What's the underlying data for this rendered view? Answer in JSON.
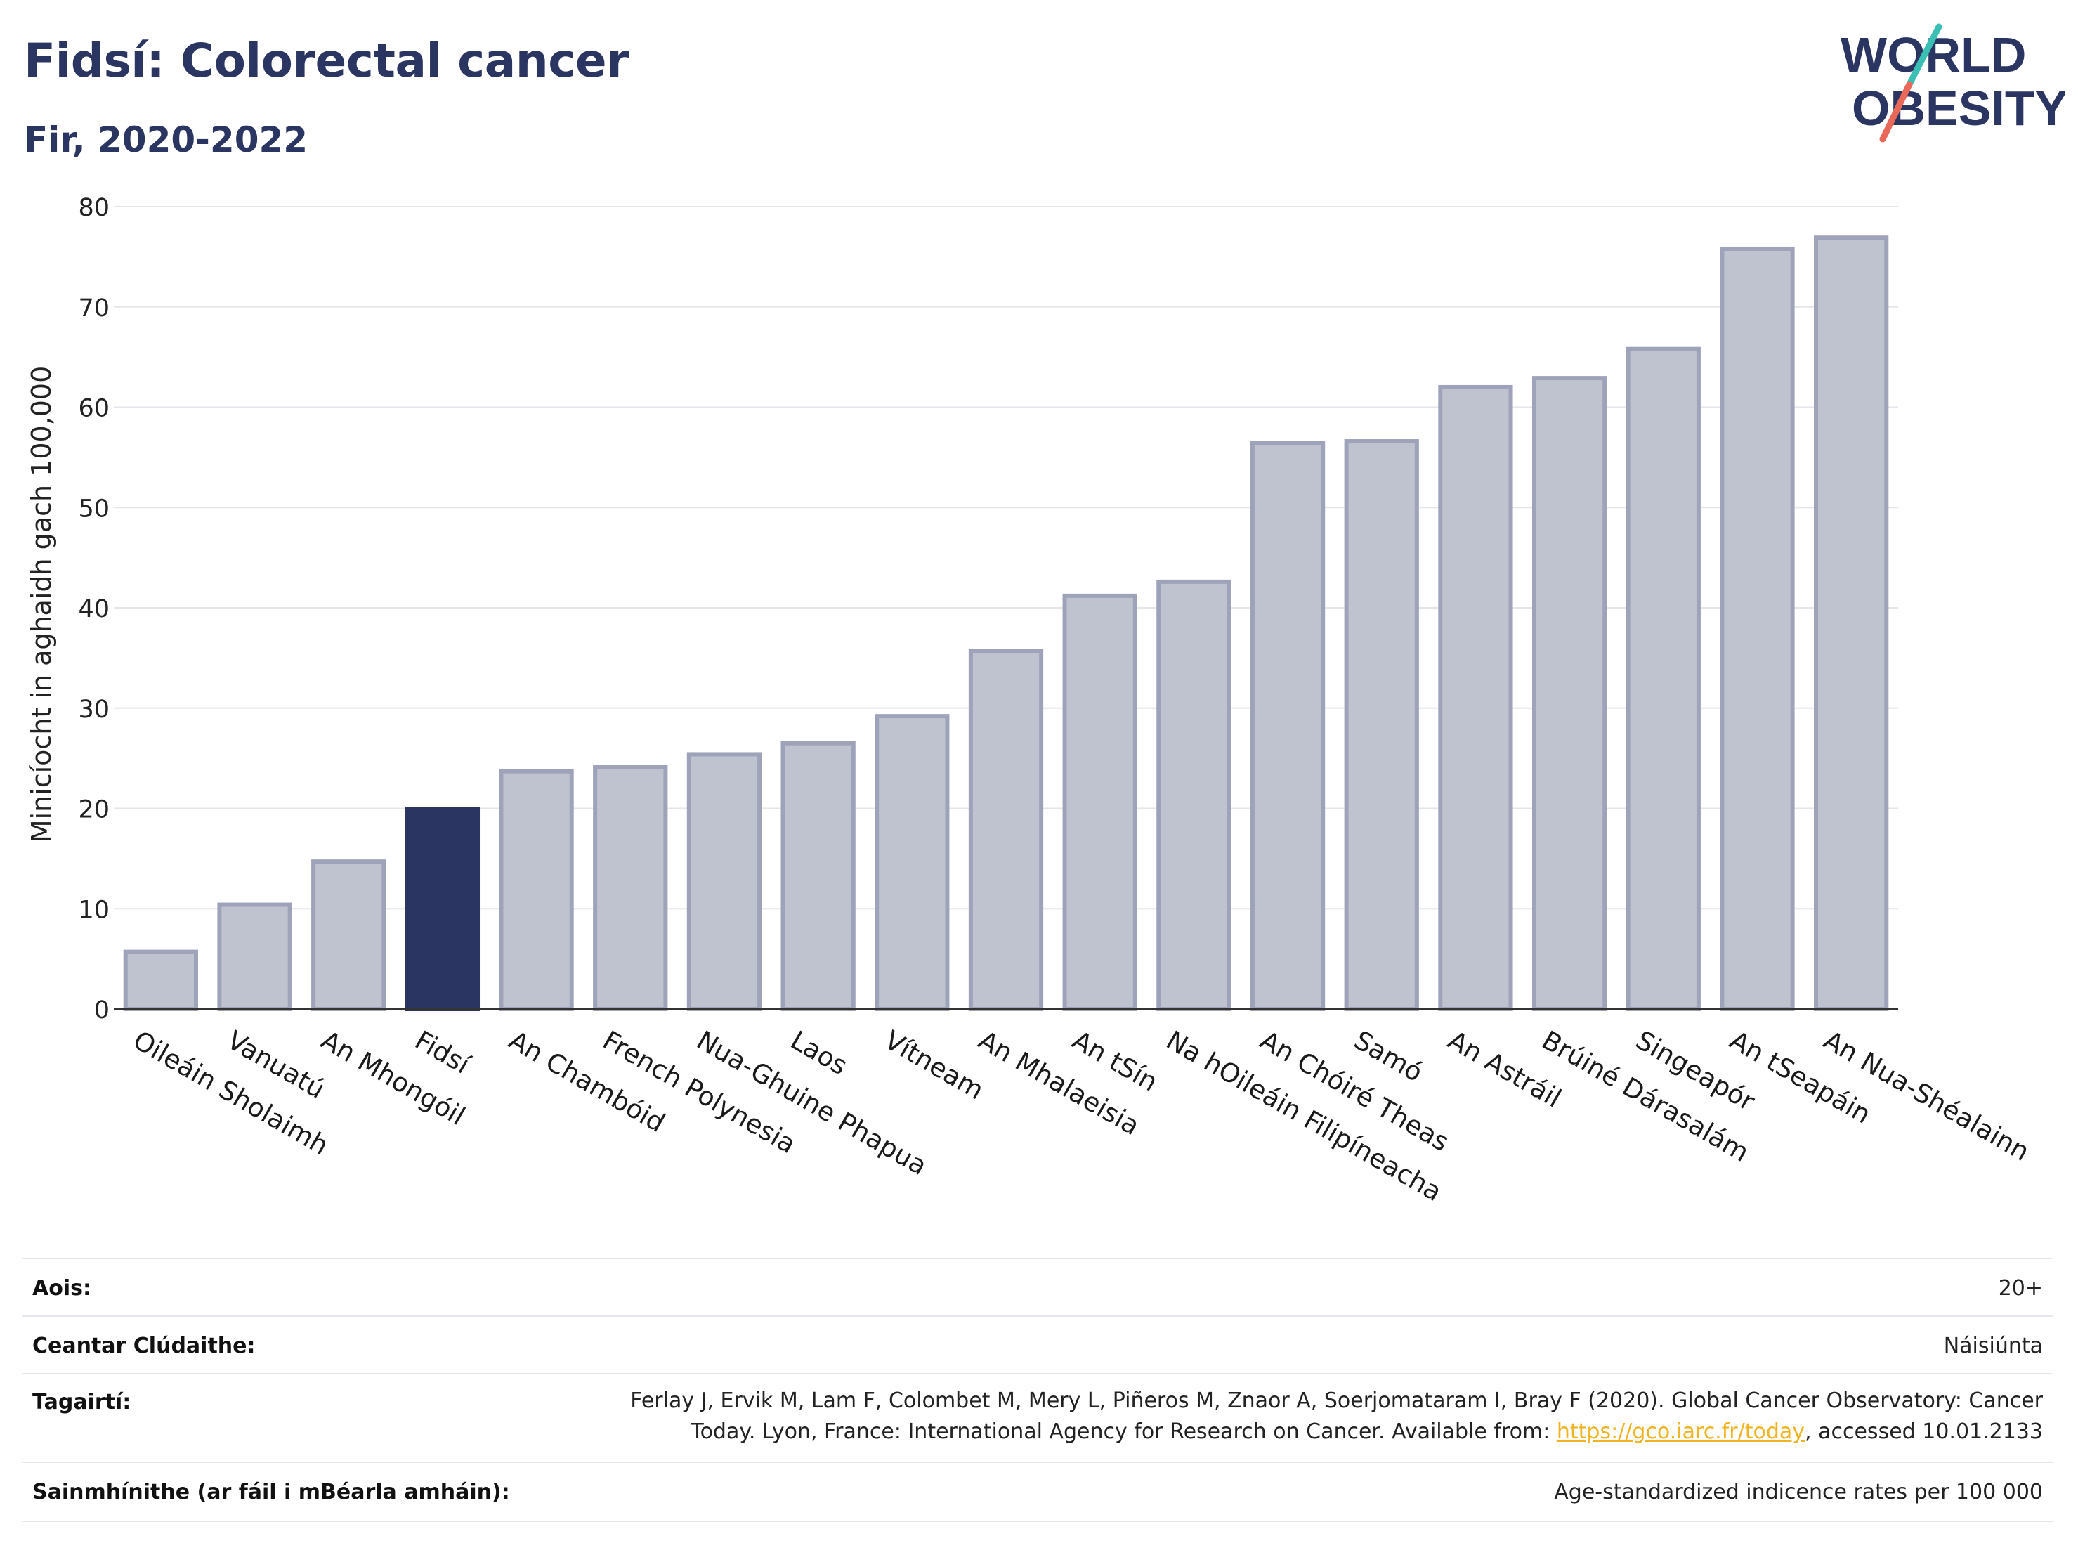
{
  "header": {
    "title": "Fidsí: Colorectal cancer",
    "subtitle": "Fir, 2020-2022",
    "logo_line1": "WORLD",
    "logo_line2": "OBESITY"
  },
  "colors": {
    "title": "#2b3561",
    "highlight_bar": "#2b3561",
    "bar_fill": "#bfc3cf",
    "bar_stroke": "#9ea3b9",
    "logo_teal": "#3bbfb4",
    "logo_red": "#e8685a",
    "link": "#f0b323"
  },
  "chart_data": {
    "type": "bar",
    "ylabel": "Minicíocht in aghaidh gach 100,000",
    "xlabel": "",
    "ylim": [
      0,
      80
    ],
    "yticks": [
      0,
      10,
      20,
      30,
      40,
      50,
      60,
      70,
      80
    ],
    "grid": true,
    "highlight": "Fidsí",
    "categories": [
      "Oileáin Sholaimh",
      "Vanuatú",
      "An Mhongóil",
      "Fidsí",
      "An Chambóid",
      "French Polynesia",
      "Nua-Ghuine Phapua",
      "Laos",
      "Vítneam",
      "An Mhalaeisia",
      "An tSín",
      "Na hOileáin Filipíneacha",
      "An Chóiré Theas",
      "Samó",
      "An Astráil",
      "Brúiné Dárasalám",
      "Singeapór",
      "An tSeapáin",
      "An Nua-Shéalainn"
    ],
    "values": [
      5.7,
      10.4,
      14.7,
      19.9,
      23.7,
      24.1,
      25.4,
      26.5,
      29.2,
      35.7,
      41.2,
      42.6,
      56.4,
      56.6,
      62.0,
      62.9,
      65.8,
      75.8,
      76.9
    ]
  },
  "info": {
    "age_label": "Aois:",
    "age_value": "20+",
    "coverage_label": "Ceantar Clúdaithe:",
    "coverage_value": "Náisiúnta",
    "refs_label": "Tagairtí:",
    "refs_line1": "Ferlay J, Ervik M, Lam F, Colombet M, Mery L, Piñeros M, Znaor A, Soerjomataram I, Bray F (2020). Global Cancer Observatory: Cancer",
    "refs_line2_pre": "Today. Lyon, France: International Agency for Research on Cancer. Available from: ",
    "refs_link": "https://gco.iarc.fr/today",
    "refs_line2_post": ", accessed 10.01.2133",
    "defs_label": "Sainmhínithe (ar fáil i mBéarla amháin):",
    "defs_value": "Age-standardized indicence rates per 100 000"
  }
}
